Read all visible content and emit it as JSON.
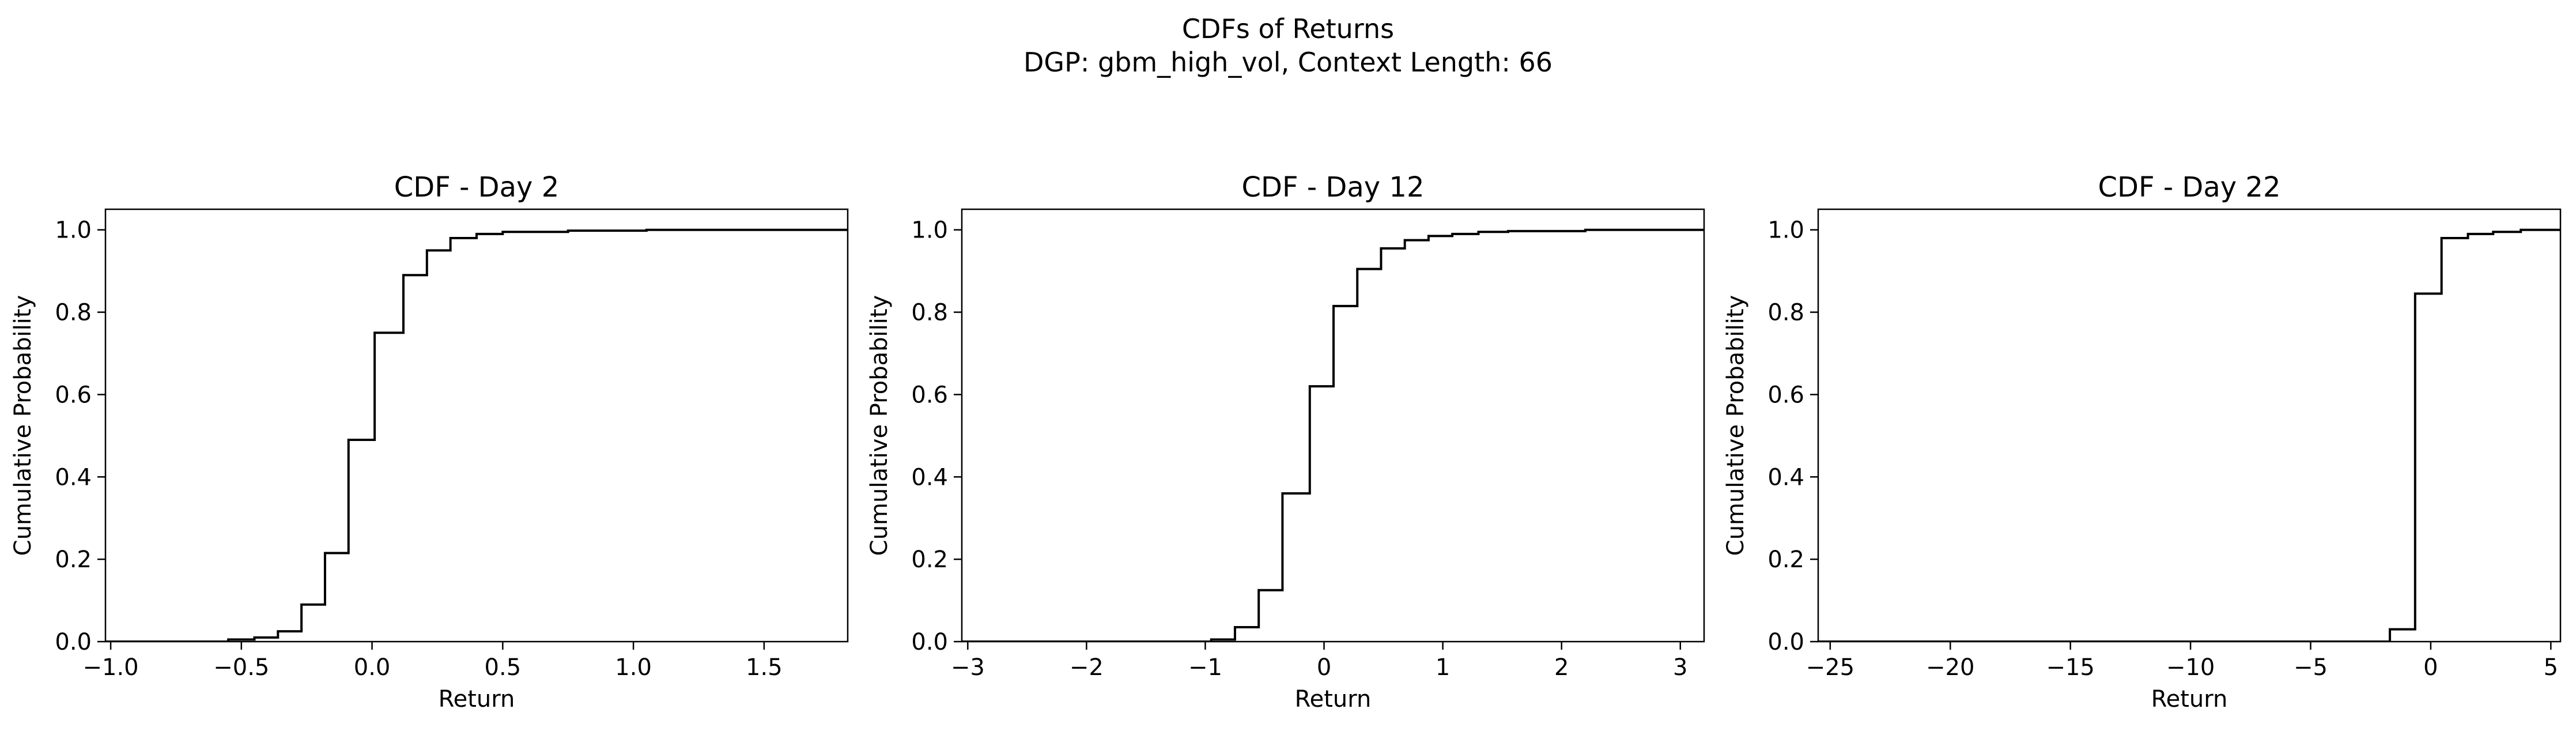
{
  "figure": {
    "title": "CDFs of Returns",
    "subtitle": "DGP: gbm_high_vol, Context Length: 66"
  },
  "chart_data": [
    {
      "type": "line",
      "step": true,
      "title": "CDF - Day 2",
      "xlabel": "Return",
      "ylabel": "Cumulative Probability",
      "xlim": [
        -1.02,
        1.82
      ],
      "ylim": [
        0,
        1.05
      ],
      "xticks": [
        -1.0,
        -0.5,
        0.0,
        0.5,
        1.0,
        1.5
      ],
      "xtick_labels": [
        "−1.0",
        "−0.5",
        "0.0",
        "0.5",
        "1.0",
        "1.5"
      ],
      "yticks": [
        0.0,
        0.2,
        0.4,
        0.6,
        0.8,
        1.0
      ],
      "ytick_labels": [
        "0.0",
        "0.2",
        "0.4",
        "0.6",
        "0.8",
        "1.0"
      ],
      "grid": false,
      "x": [
        -1.02,
        -0.55,
        -0.45,
        -0.36,
        -0.27,
        -0.18,
        -0.09,
        0.01,
        0.12,
        0.21,
        0.3,
        0.4,
        0.5,
        0.75,
        1.05,
        1.82
      ],
      "y": [
        0.0,
        0.005,
        0.01,
        0.025,
        0.09,
        0.215,
        0.49,
        0.75,
        0.89,
        0.95,
        0.98,
        0.99,
        0.995,
        0.998,
        1.0,
        1.0
      ]
    },
    {
      "type": "line",
      "step": true,
      "title": "CDF - Day 12",
      "xlabel": "Return",
      "ylabel": "Cumulative Probability",
      "xlim": [
        -3.05,
        3.2
      ],
      "ylim": [
        0,
        1.05
      ],
      "xticks": [
        -3,
        -2,
        -1,
        0,
        1,
        2,
        3
      ],
      "xtick_labels": [
        "−3",
        "−2",
        "−1",
        "0",
        "1",
        "2",
        "3"
      ],
      "yticks": [
        0.0,
        0.2,
        0.4,
        0.6,
        0.8,
        1.0
      ],
      "ytick_labels": [
        "0.0",
        "0.2",
        "0.4",
        "0.6",
        "0.8",
        "1.0"
      ],
      "grid": false,
      "x": [
        -3.05,
        -0.95,
        -0.75,
        -0.55,
        -0.35,
        -0.12,
        0.08,
        0.28,
        0.48,
        0.68,
        0.88,
        1.08,
        1.3,
        1.55,
        2.2,
        3.2
      ],
      "y": [
        0.0,
        0.005,
        0.035,
        0.125,
        0.36,
        0.62,
        0.815,
        0.905,
        0.955,
        0.975,
        0.985,
        0.99,
        0.995,
        0.997,
        1.0,
        1.0
      ]
    },
    {
      "type": "line",
      "step": true,
      "title": "CDF - Day 22",
      "xlabel": "Return",
      "ylabel": "Cumulative Probability",
      "xlim": [
        -25.5,
        5.4
      ],
      "ylim": [
        0,
        1.05
      ],
      "xticks": [
        -25,
        -20,
        -15,
        -10,
        -5,
        0,
        5
      ],
      "xtick_labels": [
        "−25",
        "−20",
        "−15",
        "−10",
        "−5",
        "0",
        "5"
      ],
      "yticks": [
        0.0,
        0.2,
        0.4,
        0.6,
        0.8,
        1.0
      ],
      "ytick_labels": [
        "0.0",
        "0.2",
        "0.4",
        "0.6",
        "0.8",
        "1.0"
      ],
      "grid": false,
      "x": [
        -25.5,
        -1.7,
        -0.65,
        0.45,
        1.55,
        2.6,
        3.75,
        5.4
      ],
      "y": [
        0.0,
        0.03,
        0.845,
        0.98,
        0.99,
        0.995,
        1.0,
        1.0
      ]
    }
  ]
}
